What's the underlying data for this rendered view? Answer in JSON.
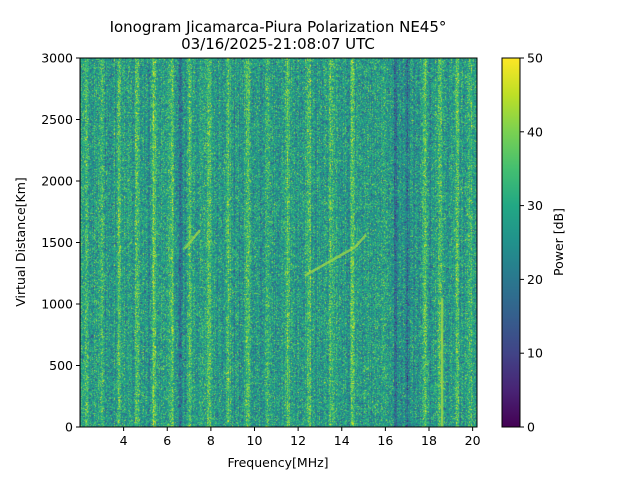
{
  "chart_data": {
    "type": "heatmap",
    "title": "Ionogram Jicamarca-Piura Polarization NE45°",
    "subtitle": "03/16/2025-21:08:07 UTC",
    "xlabel": "Frequency[MHz]",
    "ylabel": "Virtual Distance[Km]",
    "xlim": [
      2.0,
      20.2
    ],
    "ylim": [
      0,
      3000
    ],
    "x_ticks": [
      4,
      6,
      8,
      10,
      12,
      14,
      16,
      18,
      20
    ],
    "y_ticks": [
      0,
      500,
      1000,
      1500,
      2000,
      2500,
      3000
    ],
    "colorbar": {
      "label": "Power [dB]",
      "colormap": "viridis",
      "range": [
        0,
        50
      ],
      "ticks": [
        0,
        10,
        20,
        30,
        40,
        50
      ]
    },
    "base_level_db": 27,
    "bright_bands_mhz": [
      2.3,
      3.0,
      3.8,
      4.6,
      5.4,
      6.2,
      7.0,
      7.9,
      8.8,
      9.7,
      10.6,
      11.5,
      12.5,
      13.5,
      14.5,
      17.8,
      18.5,
      19.3,
      19.9
    ],
    "dark_bands_mhz": [
      6.6,
      16.5,
      17.0
    ],
    "traces": [
      {
        "name": "",
        "points": [
          [
            6.8,
            1450
          ],
          [
            7.5,
            1600
          ]
        ]
      },
      {
        "name": "",
        "points": [
          [
            12.3,
            1230
          ],
          [
            13.5,
            1350
          ],
          [
            14.6,
            1460
          ],
          [
            15.1,
            1560
          ]
        ]
      },
      {
        "name": "",
        "points": [
          [
            18.6,
            0
          ],
          [
            18.6,
            1050
          ]
        ]
      }
    ],
    "grid": false
  }
}
